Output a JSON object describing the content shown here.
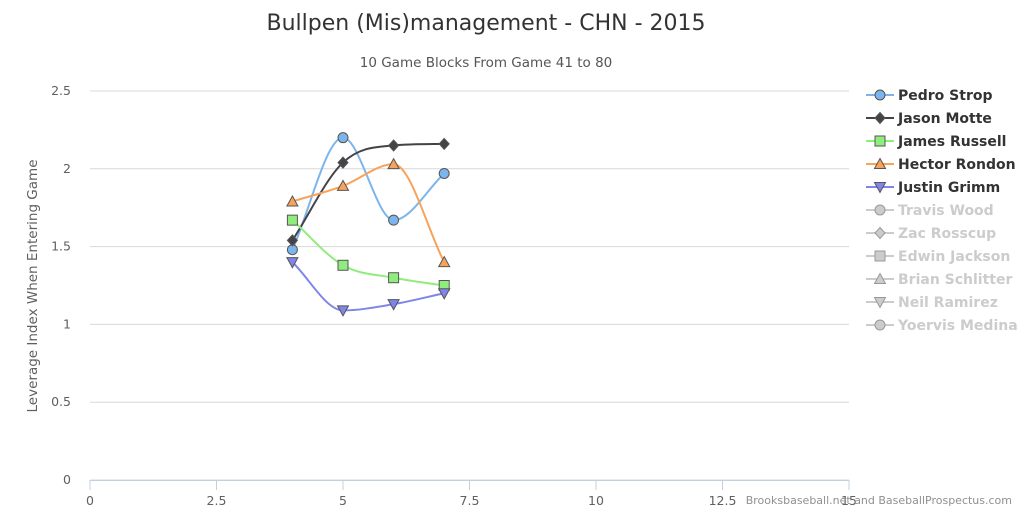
{
  "chart_data": {
    "type": "line",
    "title": "Bullpen (Mis)management - CHN - 2015",
    "subtitle": "10 Game Blocks From Game 41 to 80",
    "xlabel": "",
    "ylabel": "Leverage Index When Entering Game",
    "xlim": [
      0,
      15
    ],
    "ylim": [
      0,
      2.5
    ],
    "x_ticks": [
      "0",
      "2.5",
      "5",
      "7.5",
      "10",
      "12.5",
      "15"
    ],
    "y_ticks": [
      "0",
      "0.5",
      "1",
      "1.5",
      "2",
      "2.5"
    ],
    "grid": "horizontal",
    "legend_position": "right",
    "credits": "Brooksbaseball.net and BaseballProspectus.com",
    "series": [
      {
        "name": "Pedro Strop",
        "color": "#7cb5ec",
        "marker": "circle",
        "visible": true,
        "x": [
          4,
          5,
          6,
          7
        ],
        "y": [
          1.48,
          2.2,
          1.67,
          1.97
        ]
      },
      {
        "name": "Jason Motte",
        "color": "#434348",
        "marker": "diamond",
        "visible": true,
        "x": [
          4,
          5,
          6,
          7
        ],
        "y": [
          1.54,
          2.04,
          2.15,
          2.16
        ]
      },
      {
        "name": "James Russell",
        "color": "#90ed7d",
        "marker": "square",
        "visible": true,
        "x": [
          4,
          5,
          6,
          7
        ],
        "y": [
          1.67,
          1.38,
          1.3,
          1.25
        ]
      },
      {
        "name": "Hector Rondon",
        "color": "#f7a35c",
        "marker": "triangle",
        "visible": true,
        "x": [
          4,
          5,
          6,
          7
        ],
        "y": [
          1.79,
          1.89,
          2.03,
          1.4
        ]
      },
      {
        "name": "Justin Grimm",
        "color": "#8085e9",
        "marker": "triangle-down",
        "visible": true,
        "x": [
          4,
          5,
          6,
          7
        ],
        "y": [
          1.4,
          1.09,
          1.13,
          1.2
        ]
      },
      {
        "name": "Travis Wood",
        "color": "#cccccc",
        "marker": "circle",
        "visible": false,
        "x": [],
        "y": []
      },
      {
        "name": "Zac Rosscup",
        "color": "#cccccc",
        "marker": "diamond",
        "visible": false,
        "x": [],
        "y": []
      },
      {
        "name": "Edwin Jackson",
        "color": "#cccccc",
        "marker": "square",
        "visible": false,
        "x": [],
        "y": []
      },
      {
        "name": "Brian Schlitter",
        "color": "#cccccc",
        "marker": "triangle",
        "visible": false,
        "x": [],
        "y": []
      },
      {
        "name": "Neil Ramirez",
        "color": "#cccccc",
        "marker": "triangle-down",
        "visible": false,
        "x": [],
        "y": []
      },
      {
        "name": "Yoervis Medina",
        "color": "#cccccc",
        "marker": "circle",
        "visible": false,
        "x": [],
        "y": []
      }
    ]
  }
}
